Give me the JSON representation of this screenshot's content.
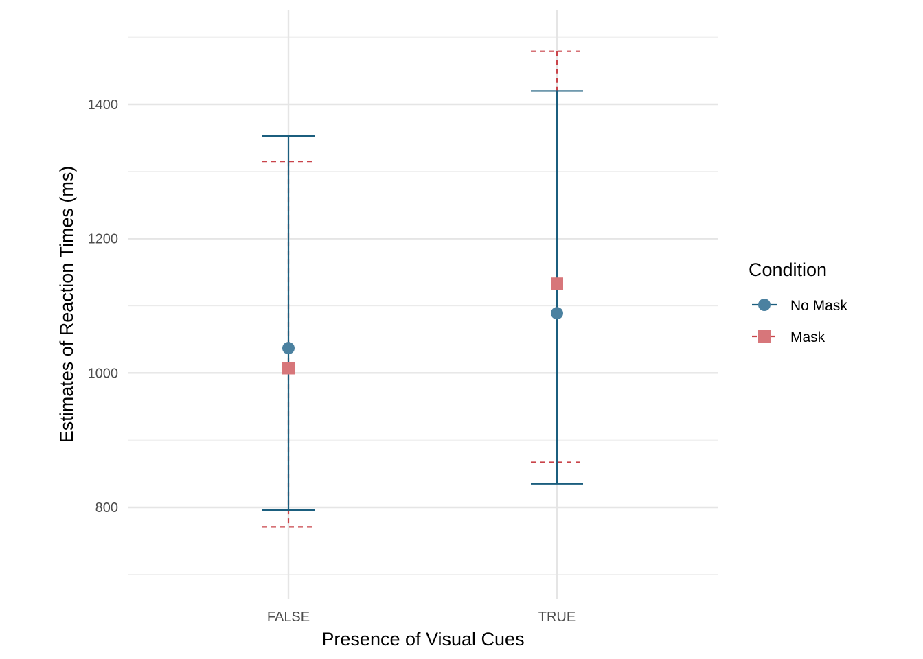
{
  "chart_data": {
    "type": "scatter",
    "categories": [
      "FALSE",
      "TRUE"
    ],
    "xlabel": "Presence of Visual Cues",
    "ylabel": "Estimates of Reaction Times (ms)",
    "ylim": [
      660,
      1500
    ],
    "yticks": [
      "800",
      "1000",
      "1200",
      "1400"
    ],
    "grid": true,
    "legend": {
      "title": "Condition",
      "position": "right"
    },
    "series": [
      {
        "name": "No Mask",
        "marker": "circle",
        "linestyle": "solid",
        "color": "#1b5e7e",
        "points": [
          {
            "x": "FALSE",
            "y": 1037,
            "ymin": 796,
            "ymax": 1353
          },
          {
            "x": "TRUE",
            "y": 1089,
            "ymin": 835,
            "ymax": 1420
          }
        ]
      },
      {
        "name": "Mask",
        "marker": "square",
        "linestyle": "dashed",
        "color": "#c9444a",
        "points": [
          {
            "x": "FALSE",
            "y": 1007,
            "ymin": 771,
            "ymax": 1315
          },
          {
            "x": "TRUE",
            "y": 1133,
            "ymin": 867,
            "ymax": 1479
          }
        ]
      }
    ]
  }
}
